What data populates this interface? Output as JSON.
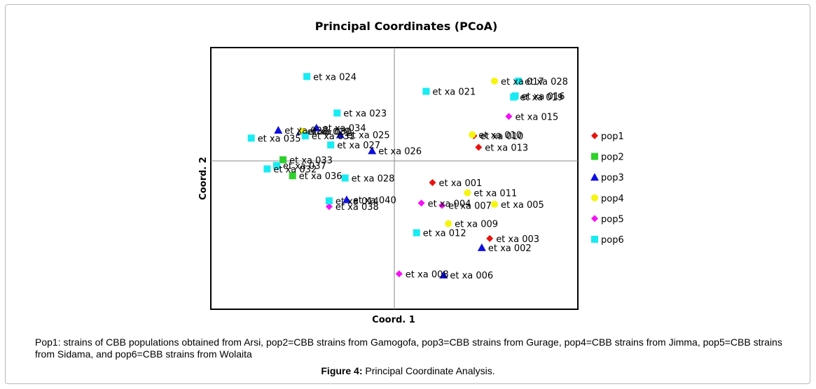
{
  "chart_data": {
    "type": "scatter",
    "title": "Principal Coordinates (PCoA)",
    "xlabel": "Coord. 1",
    "ylabel": "Coord. 2",
    "xlim": [
      -1,
      1
    ],
    "ylim": [
      -1,
      1
    ],
    "grid": false,
    "zero_lines": true,
    "legend_position": "right",
    "series": [
      {
        "name": "pop1",
        "marker": "diamond",
        "color": "#e8120c",
        "points": [
          {
            "label": "et xa 010",
            "x": 0.5,
            "y": 0.22
          },
          {
            "label": "et xa 013",
            "x": 0.53,
            "y": 0.12
          },
          {
            "label": "et xa 001",
            "x": 0.24,
            "y": -0.19
          },
          {
            "label": "et xa 003",
            "x": 0.6,
            "y": -0.68
          }
        ]
      },
      {
        "name": "pop2",
        "marker": "square",
        "color": "#2ed12c",
        "points": [
          {
            "label": "et xa 033",
            "x": -0.7,
            "y": 0.01
          },
          {
            "label": "et xa 036",
            "x": -0.64,
            "y": -0.13
          }
        ]
      },
      {
        "name": "pop3",
        "marker": "triangle",
        "color": "#1010e0",
        "points": [
          {
            "label": "et xa 022",
            "x": -0.73,
            "y": 0.27
          },
          {
            "label": "et xa 029",
            "x": -0.59,
            "y": 0.26
          },
          {
            "label": "et xa 034",
            "x": -0.49,
            "y": 0.29
          },
          {
            "label": "et xa 025",
            "x": -0.34,
            "y": 0.23
          },
          {
            "label": "et xa 026",
            "x": -0.14,
            "y": 0.09
          },
          {
            "label": "et xa 040",
            "x": -0.3,
            "y": -0.34
          },
          {
            "label": "et xa 002",
            "x": 0.55,
            "y": -0.76
          },
          {
            "label": "et xa 006",
            "x": 0.31,
            "y": -1.0
          }
        ]
      },
      {
        "name": "pop4",
        "marker": "circle",
        "color": "#f5f512",
        "points": [
          {
            "label": "et xa 017",
            "x": 0.63,
            "y": 0.7
          },
          {
            "label": "et xa 030",
            "x": -0.58,
            "y": 0.26
          },
          {
            "label": "et xa 010",
            "x": 0.49,
            "y": 0.23
          },
          {
            "label": "et xa 011",
            "x": 0.46,
            "y": -0.28
          },
          {
            "label": "et xa 005",
            "x": 0.63,
            "y": -0.38
          },
          {
            "label": "et xa 009",
            "x": 0.34,
            "y": -0.55
          }
        ]
      },
      {
        "name": "pop5",
        "marker": "diamond",
        "color": "#f510f5",
        "points": [
          {
            "label": "et xa 015",
            "x": 0.72,
            "y": 0.39
          },
          {
            "label": "et xa 004",
            "x": 0.17,
            "y": -0.37
          },
          {
            "label": "et xa 007",
            "x": 0.3,
            "y": -0.39
          },
          {
            "label": "et xa 038",
            "x": -0.41,
            "y": -0.4
          },
          {
            "label": "et xa 008",
            "x": 0.03,
            "y": -0.99
          }
        ]
      },
      {
        "name": "pop6",
        "marker": "square",
        "color": "#19ebf2",
        "points": [
          {
            "label": "et xa 024",
            "x": -0.55,
            "y": 0.74
          },
          {
            "label": "et xa 028",
            "x": 0.78,
            "y": 0.7
          },
          {
            "label": "et xa 021",
            "x": 0.2,
            "y": 0.61
          },
          {
            "label": "et xa 016",
            "x": 0.76,
            "y": 0.57
          },
          {
            "label": "et xa 019",
            "x": 0.75,
            "y": 0.56
          },
          {
            "label": "et xa 023",
            "x": -0.36,
            "y": 0.42
          },
          {
            "label": "et xa 035",
            "x": -0.9,
            "y": 0.2
          },
          {
            "label": "et xa 031",
            "x": -0.56,
            "y": 0.22
          },
          {
            "label": "et xa 027",
            "x": -0.4,
            "y": 0.14
          },
          {
            "label": "et xa 032",
            "x": -0.8,
            "y": -0.07
          },
          {
            "label": "et xa 037",
            "x": -0.74,
            "y": -0.04
          },
          {
            "label": "et xa 028",
            "x": -0.31,
            "y": -0.15
          },
          {
            "label": "et xa 014",
            "x": -0.41,
            "y": -0.35
          },
          {
            "label": "et xa 012",
            "x": 0.14,
            "y": -0.63
          }
        ]
      }
    ]
  },
  "note": "Pop1: strains of CBB populations obtained from Arsi, pop2=CBB strains from Gamogofa, pop3=CBB strains from Gurage, pop4=CBB strains from Jimma, pop5=CBB strains from Sidama, and pop6=CBB strains from Wolaita",
  "caption": {
    "label": "Figure 4:",
    "text": " Principal Coordinate Analysis."
  }
}
